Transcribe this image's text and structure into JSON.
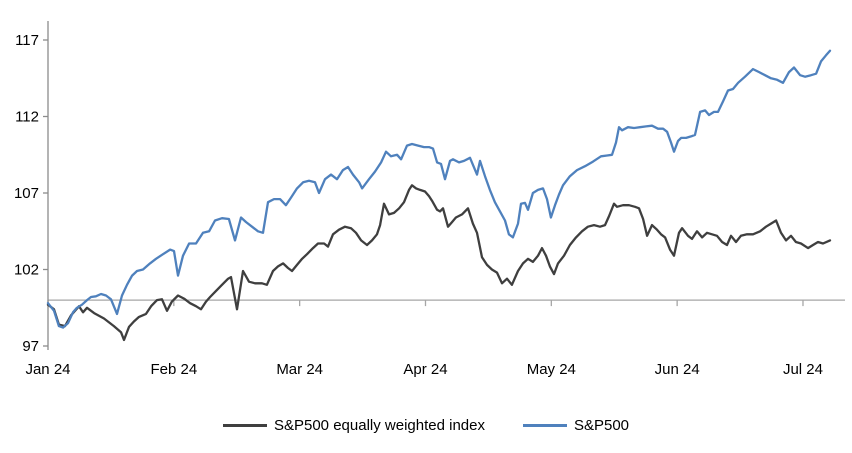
{
  "chart_data": {
    "type": "line",
    "title": "",
    "x_axis": {
      "labels": [
        "Jan 24",
        "Feb 24",
        "Mar 24",
        "Apr 24",
        "May 24",
        "Jun 24",
        "Jul 24"
      ],
      "tick_positions_months": [
        0,
        1,
        2,
        3,
        4,
        5,
        6
      ],
      "range_months": [
        0,
        6.33
      ]
    },
    "y_axis": {
      "ticks": [
        "97",
        "102",
        "107",
        "112",
        "117"
      ],
      "tick_values": [
        97,
        102,
        107,
        112,
        117
      ],
      "range_shown": [
        97,
        117
      ]
    },
    "baseline_value": 100,
    "grid": false,
    "legend_position": "bottom-center",
    "series": [
      {
        "name": "S&P500 equally weighted index",
        "color": "#3f3f3f",
        "points": [
          [
            0,
            99.7
          ],
          [
            0.048,
            99.4
          ],
          [
            0.087,
            98.4
          ],
          [
            0.135,
            98.3
          ],
          [
            0.183,
            99.0
          ],
          [
            0.246,
            99.6
          ],
          [
            0.278,
            99.2
          ],
          [
            0.31,
            99.5
          ],
          [
            0.366,
            99.15
          ],
          [
            0.445,
            98.8
          ],
          [
            0.524,
            98.3
          ],
          [
            0.58,
            97.9
          ],
          [
            0.604,
            97.4
          ],
          [
            0.644,
            98.25
          ],
          [
            0.683,
            98.6
          ],
          [
            0.723,
            98.9
          ],
          [
            0.779,
            99.1
          ],
          [
            0.819,
            99.6
          ],
          [
            0.866,
            100.0
          ],
          [
            0.906,
            100.05
          ],
          [
            0.946,
            99.3
          ],
          [
            0.985,
            99.9
          ],
          [
            1.033,
            100.3
          ],
          [
            1.081,
            100.1
          ],
          [
            1.129,
            99.8
          ],
          [
            1.176,
            99.6
          ],
          [
            1.216,
            99.4
          ],
          [
            1.256,
            99.9
          ],
          [
            1.288,
            100.2
          ],
          [
            1.335,
            100.6
          ],
          [
            1.383,
            101.0
          ],
          [
            1.431,
            101.4
          ],
          [
            1.454,
            101.5
          ],
          [
            1.502,
            99.4
          ],
          [
            1.55,
            101.9
          ],
          [
            1.597,
            101.2
          ],
          [
            1.645,
            101.1
          ],
          [
            1.701,
            101.1
          ],
          [
            1.74,
            101.0
          ],
          [
            1.788,
            101.9
          ],
          [
            1.828,
            102.2
          ],
          [
            1.868,
            102.4
          ],
          [
            1.907,
            102.1
          ],
          [
            1.939,
            101.9
          ],
          [
            1.979,
            102.3
          ],
          [
            2.019,
            102.7
          ],
          [
            2.058,
            103.0
          ],
          [
            2.106,
            103.4
          ],
          [
            2.146,
            103.7
          ],
          [
            2.194,
            103.7
          ],
          [
            2.225,
            103.5
          ],
          [
            2.265,
            104.3
          ],
          [
            2.313,
            104.6
          ],
          [
            2.36,
            104.8
          ],
          [
            2.408,
            104.7
          ],
          [
            2.448,
            104.4
          ],
          [
            2.488,
            103.9
          ],
          [
            2.535,
            103.6
          ],
          [
            2.575,
            103.9
          ],
          [
            2.615,
            104.3
          ],
          [
            2.639,
            104.9
          ],
          [
            2.67,
            106.3
          ],
          [
            2.71,
            105.6
          ],
          [
            2.75,
            105.7
          ],
          [
            2.79,
            106.0
          ],
          [
            2.829,
            106.4
          ],
          [
            2.869,
            107.2
          ],
          [
            2.893,
            107.5
          ],
          [
            2.925,
            107.3
          ],
          [
            2.957,
            107.2
          ],
          [
            2.996,
            107.1
          ],
          [
            3.028,
            106.8
          ],
          [
            3.052,
            106.5
          ],
          [
            3.092,
            105.9
          ],
          [
            3.115,
            105.8
          ],
          [
            3.139,
            106.0
          ],
          [
            3.179,
            104.8
          ],
          [
            3.211,
            105.1
          ],
          [
            3.242,
            105.4
          ],
          [
            3.29,
            105.6
          ],
          [
            3.338,
            106.0
          ],
          [
            3.377,
            105.0
          ],
          [
            3.409,
            104.4
          ],
          [
            3.449,
            102.8
          ],
          [
            3.489,
            102.3
          ],
          [
            3.528,
            102.0
          ],
          [
            3.568,
            101.8
          ],
          [
            3.608,
            101.1
          ],
          [
            3.648,
            101.4
          ],
          [
            3.687,
            101.0
          ],
          [
            3.735,
            101.9
          ],
          [
            3.775,
            102.4
          ],
          [
            3.815,
            102.7
          ],
          [
            3.854,
            102.5
          ],
          [
            3.894,
            102.9
          ],
          [
            3.926,
            103.4
          ],
          [
            3.958,
            102.9
          ],
          [
            3.989,
            102.2
          ],
          [
            4.021,
            101.7
          ],
          [
            4.053,
            102.4
          ],
          [
            4.101,
            102.9
          ],
          [
            4.148,
            103.6
          ],
          [
            4.196,
            104.1
          ],
          [
            4.244,
            104.5
          ],
          [
            4.291,
            104.8
          ],
          [
            4.339,
            104.9
          ],
          [
            4.387,
            104.8
          ],
          [
            4.427,
            104.9
          ],
          [
            4.459,
            105.5
          ],
          [
            4.498,
            106.3
          ],
          [
            4.522,
            106.1
          ],
          [
            4.57,
            106.2
          ],
          [
            4.617,
            106.2
          ],
          [
            4.665,
            106.1
          ],
          [
            4.697,
            106.0
          ],
          [
            4.729,
            105.3
          ],
          [
            4.761,
            104.2
          ],
          [
            4.8,
            104.9
          ],
          [
            4.84,
            104.6
          ],
          [
            4.872,
            104.3
          ],
          [
            4.904,
            104.1
          ],
          [
            4.943,
            103.3
          ],
          [
            4.975,
            102.9
          ],
          [
            5.015,
            104.4
          ],
          [
            5.039,
            104.7
          ],
          [
            5.086,
            104.2
          ],
          [
            5.118,
            104.0
          ],
          [
            5.158,
            104.5
          ],
          [
            5.198,
            104.1
          ],
          [
            5.237,
            104.4
          ],
          [
            5.277,
            104.3
          ],
          [
            5.317,
            104.2
          ],
          [
            5.357,
            103.8
          ],
          [
            5.396,
            103.6
          ],
          [
            5.428,
            104.2
          ],
          [
            5.468,
            103.8
          ],
          [
            5.507,
            104.2
          ],
          [
            5.555,
            104.3
          ],
          [
            5.603,
            104.3
          ],
          [
            5.659,
            104.5
          ],
          [
            5.706,
            104.8
          ],
          [
            5.746,
            105.0
          ],
          [
            5.786,
            105.2
          ],
          [
            5.825,
            104.4
          ],
          [
            5.865,
            103.9
          ],
          [
            5.905,
            104.2
          ],
          [
            5.944,
            103.8
          ],
          [
            5.984,
            103.7
          ],
          [
            6.04,
            103.4
          ],
          [
            6.08,
            103.6
          ],
          [
            6.119,
            103.8
          ],
          [
            6.159,
            103.7
          ],
          [
            6.215,
            103.9
          ]
        ]
      },
      {
        "name": "S&P500",
        "color": "#4f81bd",
        "points": [
          [
            0,
            99.8
          ],
          [
            0.048,
            99.3
          ],
          [
            0.087,
            98.3
          ],
          [
            0.119,
            98.2
          ],
          [
            0.159,
            98.5
          ],
          [
            0.199,
            99.2
          ],
          [
            0.23,
            99.5
          ],
          [
            0.27,
            99.7
          ],
          [
            0.31,
            100.0
          ],
          [
            0.342,
            100.2
          ],
          [
            0.381,
            100.25
          ],
          [
            0.421,
            100.4
          ],
          [
            0.461,
            100.3
          ],
          [
            0.501,
            100.05
          ],
          [
            0.548,
            99.1
          ],
          [
            0.588,
            100.3
          ],
          [
            0.628,
            101.0
          ],
          [
            0.668,
            101.6
          ],
          [
            0.707,
            101.9
          ],
          [
            0.755,
            102.0
          ],
          [
            0.811,
            102.4
          ],
          [
            0.858,
            102.7
          ],
          [
            0.914,
            103.0
          ],
          [
            0.97,
            103.3
          ],
          [
            1.001,
            103.2
          ],
          [
            1.033,
            101.6
          ],
          [
            1.073,
            102.9
          ],
          [
            1.121,
            103.7
          ],
          [
            1.176,
            103.7
          ],
          [
            1.232,
            104.4
          ],
          [
            1.28,
            104.5
          ],
          [
            1.327,
            105.2
          ],
          [
            1.383,
            105.35
          ],
          [
            1.438,
            105.3
          ],
          [
            1.486,
            103.9
          ],
          [
            1.534,
            105.4
          ],
          [
            1.574,
            105.1
          ],
          [
            1.621,
            104.8
          ],
          [
            1.669,
            104.5
          ],
          [
            1.709,
            104.4
          ],
          [
            1.748,
            106.4
          ],
          [
            1.796,
            106.6
          ],
          [
            1.844,
            106.6
          ],
          [
            1.891,
            106.2
          ],
          [
            1.931,
            106.7
          ],
          [
            1.979,
            107.3
          ],
          [
            2.027,
            107.7
          ],
          [
            2.074,
            107.8
          ],
          [
            2.122,
            107.7
          ],
          [
            2.154,
            107.0
          ],
          [
            2.201,
            107.9
          ],
          [
            2.249,
            108.2
          ],
          [
            2.297,
            107.9
          ],
          [
            2.344,
            108.5
          ],
          [
            2.384,
            108.7
          ],
          [
            2.424,
            108.2
          ],
          [
            2.472,
            107.7
          ],
          [
            2.496,
            107.3
          ],
          [
            2.551,
            107.9
          ],
          [
            2.599,
            108.4
          ],
          [
            2.647,
            109.0
          ],
          [
            2.686,
            109.7
          ],
          [
            2.726,
            109.4
          ],
          [
            2.774,
            109.5
          ],
          [
            2.806,
            109.2
          ],
          [
            2.853,
            110.1
          ],
          [
            2.893,
            110.2
          ],
          [
            2.941,
            110.1
          ],
          [
            2.988,
            110.0
          ],
          [
            3.028,
            110.0
          ],
          [
            3.06,
            109.9
          ],
          [
            3.092,
            109.0
          ],
          [
            3.123,
            108.9
          ],
          [
            3.155,
            107.9
          ],
          [
            3.195,
            109.1
          ],
          [
            3.219,
            109.2
          ],
          [
            3.266,
            109.0
          ],
          [
            3.306,
            109.1
          ],
          [
            3.354,
            109.3
          ],
          [
            3.409,
            108.2
          ],
          [
            3.433,
            109.1
          ],
          [
            3.473,
            108.1
          ],
          [
            3.512,
            107.2
          ],
          [
            3.552,
            106.4
          ],
          [
            3.592,
            105.8
          ],
          [
            3.632,
            105.2
          ],
          [
            3.663,
            104.3
          ],
          [
            3.695,
            104.1
          ],
          [
            3.735,
            105.0
          ],
          [
            3.759,
            106.3
          ],
          [
            3.791,
            106.35
          ],
          [
            3.815,
            105.9
          ],
          [
            3.854,
            107.0
          ],
          [
            3.894,
            107.2
          ],
          [
            3.934,
            107.3
          ],
          [
            3.966,
            106.6
          ],
          [
            3.997,
            105.4
          ],
          [
            4.029,
            106.2
          ],
          [
            4.061,
            106.9
          ],
          [
            4.093,
            107.5
          ],
          [
            4.148,
            108.1
          ],
          [
            4.204,
            108.5
          ],
          [
            4.268,
            108.75
          ],
          [
            4.331,
            109.05
          ],
          [
            4.395,
            109.4
          ],
          [
            4.443,
            109.45
          ],
          [
            4.482,
            109.5
          ],
          [
            4.514,
            110.3
          ],
          [
            4.538,
            111.3
          ],
          [
            4.562,
            111.1
          ],
          [
            4.609,
            111.3
          ],
          [
            4.657,
            111.25
          ],
          [
            4.705,
            111.3
          ],
          [
            4.753,
            111.35
          ],
          [
            4.8,
            111.4
          ],
          [
            4.848,
            111.2
          ],
          [
            4.888,
            111.2
          ],
          [
            4.92,
            111.0
          ],
          [
            4.951,
            110.3
          ],
          [
            4.975,
            109.7
          ],
          [
            5.007,
            110.4
          ],
          [
            5.031,
            110.6
          ],
          [
            5.071,
            110.6
          ],
          [
            5.11,
            110.7
          ],
          [
            5.142,
            110.8
          ],
          [
            5.182,
            112.3
          ],
          [
            5.222,
            112.4
          ],
          [
            5.253,
            112.1
          ],
          [
            5.293,
            112.3
          ],
          [
            5.325,
            112.3
          ],
          [
            5.365,
            113.0
          ],
          [
            5.404,
            113.7
          ],
          [
            5.444,
            113.8
          ],
          [
            5.484,
            114.2
          ],
          [
            5.539,
            114.6
          ],
          [
            5.603,
            115.1
          ],
          [
            5.651,
            114.9
          ],
          [
            5.698,
            114.7
          ],
          [
            5.746,
            114.5
          ],
          [
            5.794,
            114.4
          ],
          [
            5.841,
            114.2
          ],
          [
            5.889,
            114.9
          ],
          [
            5.929,
            115.2
          ],
          [
            5.977,
            114.7
          ],
          [
            6.016,
            114.6
          ],
          [
            6.064,
            114.7
          ],
          [
            6.104,
            114.8
          ],
          [
            6.143,
            115.6
          ],
          [
            6.183,
            116.0
          ],
          [
            6.215,
            116.3
          ]
        ]
      }
    ]
  },
  "colors": {
    "background": "#ffffff",
    "axis": "#8c8c8c",
    "baseline": "#a6a6a6",
    "tick_text": "#000000"
  }
}
